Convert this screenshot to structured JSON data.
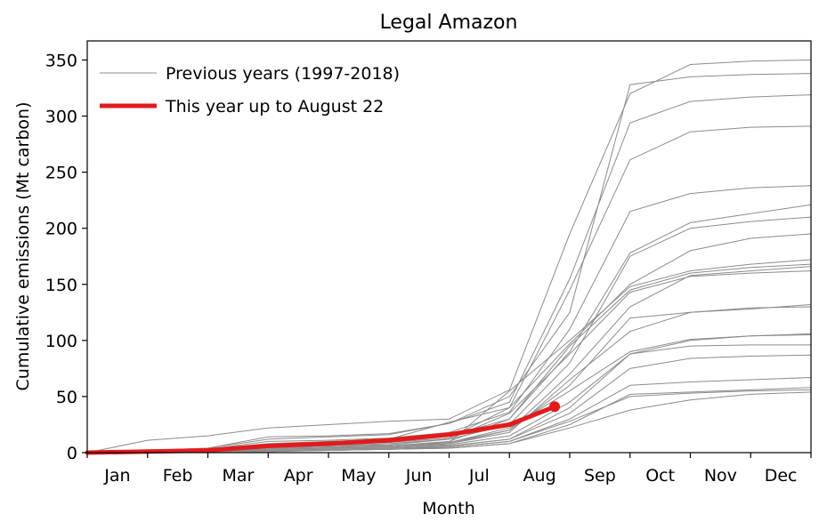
{
  "chart_data": {
    "type": "line",
    "title": "Legal Amazon",
    "xlabel": "Month",
    "ylabel": "Cumulative emissions (Mt carbon)",
    "categories": [
      "Jan",
      "Feb",
      "Mar",
      "Apr",
      "May",
      "Jun",
      "Jul",
      "Aug",
      "Sep",
      "Oct",
      "Nov",
      "Dec"
    ],
    "xlim": [
      0,
      12
    ],
    "ylim": [
      0,
      367
    ],
    "yticks": [
      0,
      50,
      100,
      150,
      200,
      250,
      300,
      350
    ],
    "grid": false,
    "legend_position": "top-left",
    "legend": {
      "previous_label": "Previous years (1997-2018)",
      "current_label": "This year up to August 22"
    },
    "colors": {
      "previous": "#8c8c8c",
      "current": "#e31a1c"
    },
    "x": [
      0,
      1,
      2,
      3,
      4,
      5,
      6,
      7,
      8,
      9,
      10,
      11,
      12
    ],
    "previous_series": [
      {
        "name": "prev-01",
        "values": [
          0,
          11,
          15,
          22,
          25,
          28,
          30,
          56,
          195,
          320,
          346,
          349,
          350
        ]
      },
      {
        "name": "prev-02",
        "values": [
          0,
          2,
          4,
          14,
          15,
          17,
          26,
          50,
          125,
          328,
          335,
          337,
          338
        ]
      },
      {
        "name": "prev-03",
        "values": [
          0,
          2,
          4,
          12,
          14,
          16,
          26,
          45,
          155,
          294,
          313,
          317,
          319
        ]
      },
      {
        "name": "prev-04",
        "values": [
          0,
          1,
          3,
          8,
          10,
          12,
          27,
          40,
          145,
          261,
          286,
          290,
          291
        ]
      },
      {
        "name": "prev-05",
        "values": [
          0,
          1,
          3,
          10,
          11,
          13,
          18,
          36,
          110,
          215,
          231,
          236,
          238
        ]
      },
      {
        "name": "prev-06",
        "values": [
          0,
          1,
          2,
          7,
          8,
          10,
          15,
          30,
          90,
          178,
          205,
          213,
          221
        ]
      },
      {
        "name": "prev-07",
        "values": [
          0,
          1,
          2,
          5,
          6,
          8,
          12,
          25,
          80,
          175,
          200,
          206,
          210
        ]
      },
      {
        "name": "prev-08",
        "values": [
          0,
          1,
          2,
          6,
          7,
          9,
          13,
          40,
          97,
          150,
          180,
          191,
          195
        ]
      },
      {
        "name": "prev-09",
        "values": [
          0,
          1,
          2,
          4,
          5,
          6,
          9,
          55,
          100,
          148,
          162,
          168,
          172
        ]
      },
      {
        "name": "prev-10",
        "values": [
          0,
          1,
          2,
          4,
          5,
          6,
          10,
          30,
          95,
          145,
          160,
          165,
          168
        ]
      },
      {
        "name": "prev-11",
        "values": [
          0,
          1,
          2,
          5,
          6,
          7,
          12,
          35,
          88,
          143,
          157,
          160,
          162
        ]
      },
      {
        "name": "prev-12",
        "values": [
          0,
          1,
          2,
          3,
          4,
          5,
          8,
          20,
          70,
          130,
          158,
          162,
          166
        ]
      },
      {
        "name": "prev-13",
        "values": [
          0,
          1,
          2,
          4,
          5,
          6,
          9,
          20,
          60,
          120,
          125,
          128,
          132
        ]
      },
      {
        "name": "prev-14",
        "values": [
          0,
          0,
          1,
          3,
          4,
          5,
          8,
          18,
          65,
          108,
          125,
          129,
          130
        ]
      },
      {
        "name": "prev-15",
        "values": [
          0,
          1,
          2,
          4,
          5,
          6,
          9,
          22,
          55,
          90,
          101,
          104,
          106
        ]
      },
      {
        "name": "prev-16",
        "values": [
          0,
          0,
          1,
          3,
          4,
          5,
          7,
          15,
          45,
          88,
          100,
          104,
          105
        ]
      },
      {
        "name": "prev-17",
        "values": [
          0,
          0,
          1,
          2,
          3,
          4,
          6,
          12,
          40,
          88,
          95,
          96,
          96
        ]
      },
      {
        "name": "prev-18",
        "values": [
          0,
          0,
          1,
          2,
          3,
          4,
          6,
          12,
          35,
          75,
          84,
          86,
          87
        ]
      },
      {
        "name": "prev-19",
        "values": [
          0,
          0,
          1,
          2,
          2,
          3,
          5,
          10,
          30,
          60,
          63,
          65,
          67
        ]
      },
      {
        "name": "prev-20",
        "values": [
          0,
          0,
          1,
          1,
          2,
          3,
          4,
          8,
          25,
          52,
          54,
          56,
          58
        ]
      },
      {
        "name": "prev-21",
        "values": [
          0,
          0,
          1,
          1,
          2,
          3,
          4,
          8,
          22,
          38,
          47,
          52,
          54
        ]
      },
      {
        "name": "prev-22",
        "values": [
          0,
          0,
          1,
          2,
          3,
          4,
          5,
          10,
          28,
          50,
          53,
          55,
          56
        ]
      }
    ],
    "current_series": {
      "name": "This year up to August 22",
      "x": [
        0,
        1,
        2,
        3,
        4,
        5,
        6,
        7,
        7.75
      ],
      "values": [
        0,
        1,
        2,
        6,
        8,
        11,
        16,
        25,
        41
      ]
    }
  }
}
